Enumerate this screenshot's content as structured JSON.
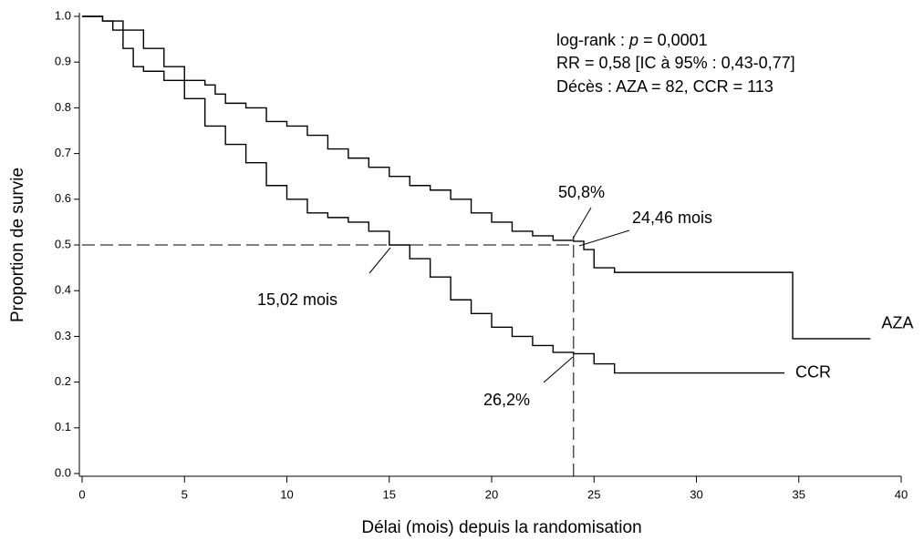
{
  "chart_data": {
    "type": "line",
    "step": true,
    "xlabel": "Délai (mois) depuis la randomisation",
    "ylabel": "Proportion de survie",
    "xlim": [
      0,
      40
    ],
    "xticks": [
      0,
      5,
      10,
      15,
      20,
      25,
      30,
      35,
      40
    ],
    "ylim": [
      0,
      1
    ],
    "yticks": [
      {
        "value": 0,
        "label": "0.0"
      },
      0.1,
      0.2,
      0.3,
      0.4,
      0.5,
      0.6,
      0.7,
      0.8,
      0.9,
      {
        "value": 1,
        "label": "1.0"
      }
    ],
    "reference_y": 0.5,
    "reference_x": 24,
    "series": [
      {
        "name": "AZA",
        "color": "#000000",
        "x": [
          0,
          1,
          1.5,
          2,
          2.5,
          3,
          4,
          6,
          6.5,
          7,
          8,
          9,
          10,
          11,
          12,
          13,
          14,
          15,
          16,
          17,
          18,
          19,
          20,
          21,
          22,
          23,
          24,
          24.5,
          25,
          26,
          34.7,
          38.5
        ],
        "values": [
          1,
          0.99,
          0.97,
          0.93,
          0.89,
          0.88,
          0.86,
          0.85,
          0.83,
          0.81,
          0.8,
          0.77,
          0.76,
          0.74,
          0.71,
          0.69,
          0.67,
          0.65,
          0.63,
          0.62,
          0.6,
          0.57,
          0.55,
          0.53,
          0.52,
          0.51,
          0.508,
          0.49,
          0.45,
          0.44,
          0.295,
          0.295
        ]
      },
      {
        "name": "CCR",
        "color": "#000000",
        "x": [
          0,
          1,
          2,
          3,
          4,
          5,
          6,
          7,
          8,
          9,
          10,
          11,
          12,
          13,
          14,
          15,
          16,
          17,
          18,
          19,
          20,
          21,
          22,
          23,
          24,
          25,
          26,
          34.3
        ],
        "values": [
          1,
          0.99,
          0.97,
          0.93,
          0.89,
          0.82,
          0.76,
          0.72,
          0.68,
          0.63,
          0.6,
          0.57,
          0.56,
          0.55,
          0.53,
          0.5,
          0.47,
          0.43,
          0.38,
          0.35,
          0.32,
          0.3,
          0.28,
          0.265,
          0.262,
          0.24,
          0.22,
          0.22
        ]
      }
    ],
    "stats": [
      [
        "log-rank : ",
        "p",
        " = 0,0001"
      ],
      "RR = 0,58 [IC à 95% : 0,43-0,77]",
      "Décès : AZA = 82, CCR = 113"
    ],
    "annotations": [
      "50,8%",
      "24,46 mois",
      "15,02 mois",
      "26,2%"
    ]
  }
}
